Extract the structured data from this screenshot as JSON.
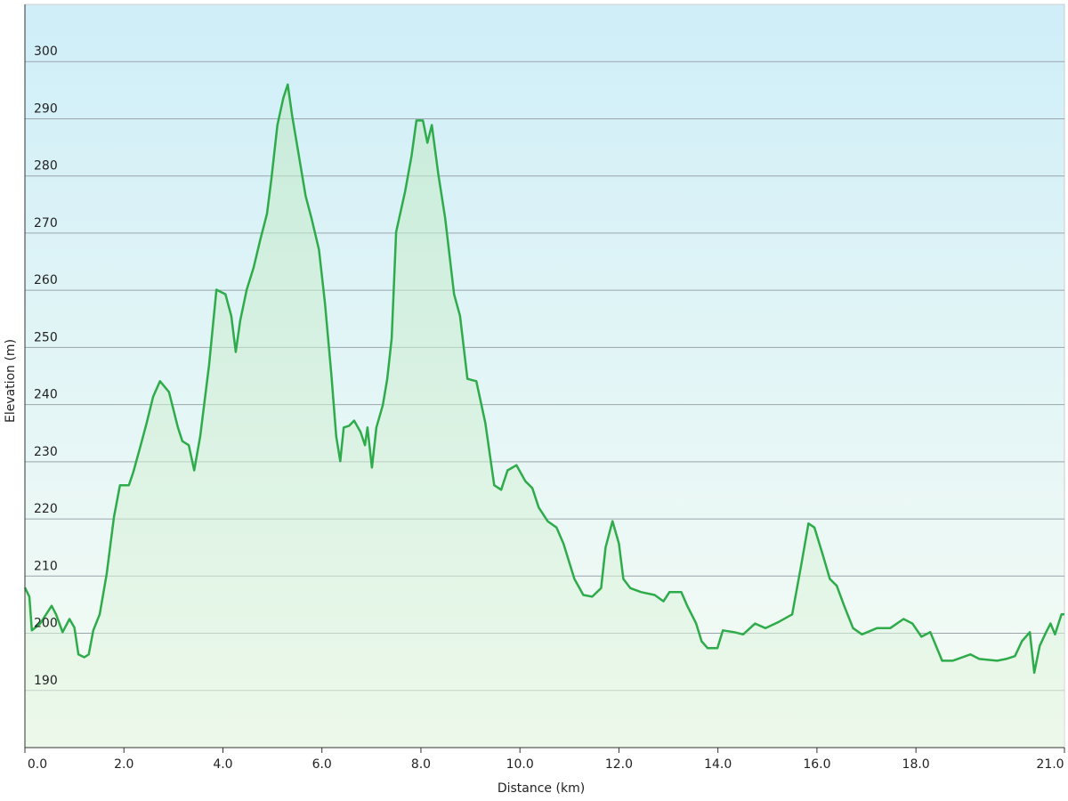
{
  "chart_data": {
    "type": "area",
    "xlabel": "Distance  (km)",
    "ylabel": "Elevation (m)",
    "color": "#2eab4a",
    "grid": true,
    "xlim": [
      0,
      21
    ],
    "ylim": [
      180,
      310
    ],
    "xticks": [
      {
        "value": 0,
        "label": "0.0"
      },
      {
        "value": 2,
        "label": "2.0"
      },
      {
        "value": 4,
        "label": "4.0"
      },
      {
        "value": 6,
        "label": "6.0"
      },
      {
        "value": 8,
        "label": "8.0"
      },
      {
        "value": 10,
        "label": "10.0"
      },
      {
        "value": 12,
        "label": "12.0"
      },
      {
        "value": 14,
        "label": "14.0"
      },
      {
        "value": 16,
        "label": "16.0"
      },
      {
        "value": 18,
        "label": "18.0"
      },
      {
        "value": 21,
        "label": "21.0"
      }
    ],
    "yticks": [
      190,
      200,
      210,
      220,
      230,
      240,
      250,
      260,
      270,
      280,
      290,
      300
    ],
    "x": [
      0,
      0.09,
      0.14,
      0.31,
      0.54,
      0.63,
      0.76,
      0.9,
      1.0,
      1.08,
      1.2,
      1.29,
      1.38,
      1.51,
      1.65,
      1.8,
      1.92,
      2.1,
      2.19,
      2.34,
      2.46,
      2.59,
      2.73,
      2.91,
      3.09,
      3.18,
      3.31,
      3.42,
      3.54,
      3.72,
      3.87,
      4.05,
      4.17,
      4.26,
      4.35,
      4.48,
      4.62,
      4.75,
      4.89,
      4.98,
      5.1,
      5.22,
      5.31,
      5.4,
      5.52,
      5.67,
      5.79,
      5.94,
      6.06,
      6.19,
      6.29,
      6.37,
      6.44,
      6.55,
      6.65,
      6.78,
      6.87,
      6.92,
      7.01,
      7.1,
      7.23,
      7.32,
      7.41,
      7.5,
      7.68,
      7.81,
      7.91,
      8.04,
      8.13,
      8.22,
      8.35,
      8.49,
      8.67,
      8.79,
      8.94,
      9.12,
      9.3,
      9.48,
      9.62,
      9.75,
      9.93,
      10.11,
      10.25,
      10.38,
      10.56,
      10.74,
      10.88,
      11.1,
      11.28,
      11.46,
      11.64,
      11.73,
      11.87,
      12.0,
      12.09,
      12.23,
      12.45,
      12.72,
      12.9,
      13.02,
      13.26,
      13.38,
      13.56,
      13.67,
      13.79,
      13.99,
      14.1,
      14.33,
      14.51,
      14.75,
      14.96,
      15.23,
      15.5,
      15.68,
      15.83,
      15.95,
      16.13,
      16.26,
      16.4,
      16.55,
      16.73,
      16.91,
      17.21,
      17.48,
      17.75,
      17.93,
      18.11,
      18.29,
      18.53,
      18.74,
      19.1,
      19.28,
      19.64,
      19.82,
      20.0,
      20.14,
      20.3,
      20.39,
      20.5,
      20.63,
      20.72,
      20.81,
      20.94,
      21.0
    ],
    "values": [
      208,
      206.4,
      200.5,
      201.7,
      204.8,
      203.3,
      200.2,
      202.5,
      201,
      196.3,
      195.8,
      196.3,
      200.5,
      203.3,
      210.3,
      220.4,
      225.9,
      225.9,
      228.2,
      232.9,
      236.8,
      241.4,
      244.1,
      242.2,
      236,
      233.6,
      232.9,
      228.5,
      234.4,
      246.9,
      260.1,
      259.3,
      255.5,
      249.2,
      254.7,
      260.1,
      264,
      268.7,
      273.4,
      279.6,
      288.9,
      293.6,
      296,
      290.5,
      284.3,
      276.5,
      272.6,
      267.1,
      257.8,
      245.3,
      234.4,
      230.1,
      236,
      236.3,
      237.2,
      235.2,
      232.9,
      236,
      229,
      236,
      239.9,
      244.5,
      251.6,
      270.2,
      277.3,
      283.5,
      289.7,
      289.7,
      285.8,
      288.9,
      280.4,
      272.6,
      259.3,
      255.5,
      244.5,
      244.1,
      236.8,
      225.9,
      225.1,
      228.5,
      229.4,
      226.6,
      225.4,
      222,
      219.6,
      218.5,
      215.7,
      209.5,
      206.7,
      206.4,
      207.9,
      215,
      219.6,
      215.7,
      209.5,
      207.9,
      207.2,
      206.7,
      205.6,
      207.2,
      207.2,
      204.8,
      201.7,
      198.6,
      197.4,
      197.4,
      200.5,
      200.2,
      199.8,
      201.7,
      200.9,
      202,
      203.3,
      211.8,
      219.2,
      218.5,
      213.4,
      209.5,
      208.3,
      204.8,
      200.9,
      199.8,
      200.9,
      200.9,
      202.5,
      201.7,
      199.4,
      200.2,
      195.2,
      195.2,
      196.3,
      195.5,
      195.2,
      195.5,
      196,
      198.6,
      200.2,
      193.1,
      197.8,
      200.2,
      201.7,
      199.8,
      203.3,
      203.3
    ]
  }
}
